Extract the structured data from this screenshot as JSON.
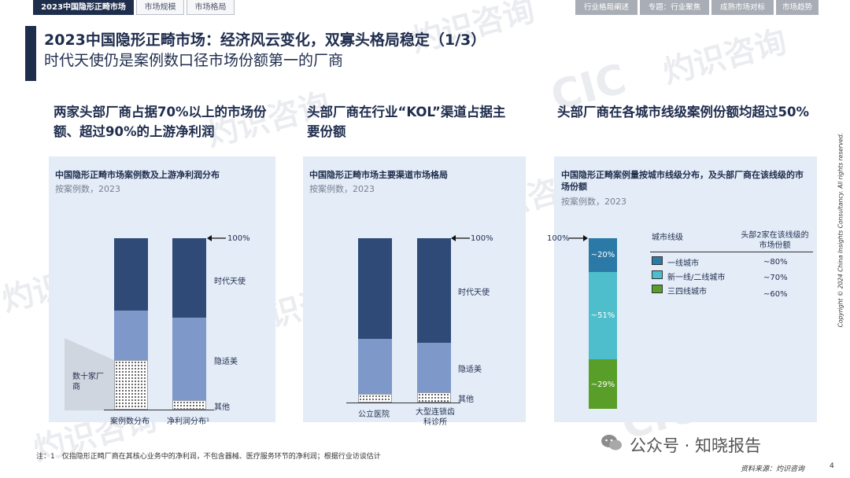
{
  "nav": {
    "tabs": [
      "2023中国隐形正畸市场",
      "市场规模",
      "市场格局"
    ],
    "right_tabs": [
      "行业格局阐述",
      "专题：行业聚焦",
      "成熟市场对标",
      "市场趋势"
    ]
  },
  "title": {
    "line1": "2023中国隐形正畸市场：经济风云变化，双寡头格局稳定（1/3）",
    "line2": "时代天使仍是案例数口径市场份额第一的厂商"
  },
  "headlines": {
    "h1": "两家头部厂商占据70%以上的市场份额、超过90%的上游净利润",
    "h2": "头部厂商在行业“KOL”渠道占据主要份额",
    "h3": "头部厂商在各城市线级案例份额均超过50%"
  },
  "panel1": {
    "title": "中国隐形正畸市场案例数及上游净利润分布",
    "sub": "按案例数，2023",
    "top_label": "100%",
    "annot_left": "数十家厂商",
    "series_labels": [
      "时代天使",
      "隐适美",
      "其他"
    ],
    "bars": [
      {
        "label": "案例数分布",
        "values": [
          0.4,
          0.28,
          0.32
        ]
      },
      {
        "label": "净利润分布¹",
        "values": [
          0.48,
          0.46,
          0.06
        ]
      }
    ]
  },
  "panel2": {
    "title": "中国隐形正畸市场主要渠道市场格局",
    "sub": "按案例数，2023",
    "top_label": "100%",
    "series_labels": [
      "时代天使",
      "隐适美",
      "其他"
    ],
    "bars": [
      {
        "label": "公立医院",
        "values": [
          0.62,
          0.3,
          0.08
        ]
      },
      {
        "label": "大型连锁齿科诊所",
        "values": [
          0.6,
          0.3,
          0.1
        ]
      }
    ]
  },
  "panel3": {
    "title": "中国隐形正畸案例量按城市线级分布，及头部厂商在该线级的市场份额",
    "sub": "按案例数，2023",
    "top_label": "100%",
    "stack": [
      {
        "label": "~20%",
        "value": 0.2,
        "color": "#2a79a7"
      },
      {
        "label": "~51%",
        "value": 0.51,
        "color": "#4ebecc"
      },
      {
        "label": "~29%",
        "value": 0.29,
        "color": "#5a9e2a"
      }
    ],
    "legend_header_left": "城市线级",
    "legend_header_right": "头部2家在该线级的市场份额",
    "legend": [
      {
        "name": "一线城市",
        "share": "~80%",
        "color": "#2a79a7"
      },
      {
        "name": "新一线/二线城市",
        "share": "~70%",
        "color": "#4ebecc"
      },
      {
        "name": "三四线城市",
        "share": "~60%",
        "color": "#5a9e2a"
      }
    ]
  },
  "footnote": "注：1　仅指隐形正畸厂商在其核心业务中的净利润，不包含器械、医疗服务环节的净利润；根据行业访谈估计",
  "source": "资料来源：灼识咨询",
  "page_number": "4",
  "copyright": "Copyright © 2024 China Insights Consultancy. All rights reserved.",
  "wechat": "公众号 · 知晓报告",
  "watermarks": {
    "cn": "灼识咨询",
    "en": "China Insights Consultancy",
    "logo": "CIC"
  }
}
